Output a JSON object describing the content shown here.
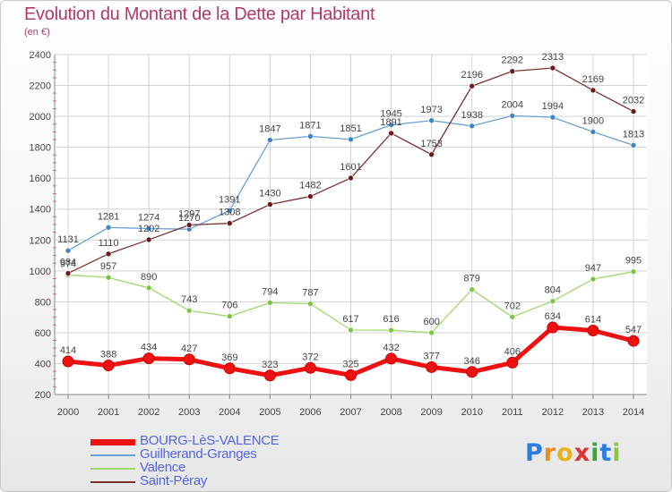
{
  "title": "Evolution du Montant de la Dette par Habitant",
  "subtitle": "(en €)",
  "logo": {
    "letters": [
      "P",
      "r",
      "o",
      "x",
      "i",
      "t",
      "i"
    ],
    "colors": [
      "#2a7de1",
      "#f08a1c",
      "#e8b21a",
      "#d8372e",
      "#3aa63a",
      "#2a7de1",
      "#8dc63f"
    ]
  },
  "chart_data": {
    "type": "line",
    "x": [
      2000,
      2001,
      2002,
      2003,
      2004,
      2005,
      2006,
      2007,
      2008,
      2009,
      2010,
      2011,
      2012,
      2013,
      2014
    ],
    "ylim": [
      200,
      2400
    ],
    "yticks": [
      200,
      400,
      600,
      800,
      1000,
      1200,
      1400,
      1600,
      1800,
      2000,
      2200,
      2400
    ],
    "grid": true,
    "legend_position": "bottom-left",
    "series": [
      {
        "name": "BOURG-LèS-VALENCE",
        "color": "#ee1111",
        "marker": "#ee1111",
        "width": 5,
        "values": [
          414,
          388,
          434,
          427,
          369,
          323,
          372,
          325,
          432,
          377,
          346,
          406,
          634,
          614,
          547
        ]
      },
      {
        "name": "Guilherand-Granges",
        "color": "#6a9fd4",
        "marker": "#3d85c6",
        "width": 1.3,
        "values": [
          1131,
          1281,
          1274,
          1270,
          1391,
          1847,
          1871,
          1851,
          1945,
          1973,
          1938,
          2004,
          1994,
          1900,
          1813
        ]
      },
      {
        "name": "Valence",
        "color": "#9ad96a",
        "marker": "#7cc444",
        "width": 1.3,
        "values": [
          974,
          957,
          890,
          743,
          706,
          794,
          787,
          617,
          616,
          600,
          879,
          702,
          804,
          947,
          995
        ]
      },
      {
        "name": "Saint-Péray",
        "color": "#7a3232",
        "marker": "#6a1c1c",
        "width": 1.3,
        "values": [
          984,
          1110,
          1202,
          1297,
          1308,
          1430,
          1482,
          1601,
          1891,
          1753,
          2196,
          2292,
          2313,
          2169,
          2032
        ]
      }
    ]
  }
}
